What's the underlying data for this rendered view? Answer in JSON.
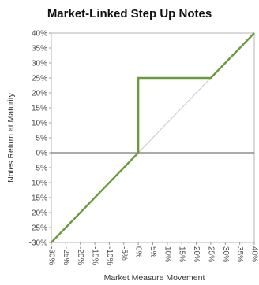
{
  "chart_data": {
    "type": "line",
    "title": "Market-Linked Step Up Notes",
    "xlabel": "Market Measure Movement",
    "ylabel": "Notes Return at Maturity",
    "xlim": [
      -30,
      40
    ],
    "ylim": [
      -30,
      40
    ],
    "x_ticks": [
      "-30%",
      "-25%",
      "-20%",
      "-15%",
      "-10%",
      "-5%",
      "0%",
      "5%",
      "10%",
      "15%",
      "20%",
      "25%",
      "30%",
      "35%",
      "40%"
    ],
    "y_ticks": [
      "40%",
      "35%",
      "30%",
      "25%",
      "20%",
      "15%",
      "10%",
      "5%",
      "0%",
      "-5%",
      "-10%",
      "-15%",
      "-20%",
      "-25%",
      "-30%"
    ],
    "grid": false,
    "series": [
      {
        "x": [
          -30,
          0,
          0,
          25,
          40
        ],
        "y": [
          -30,
          0,
          25,
          25,
          40
        ],
        "color": "#6a9a3a"
      },
      {
        "x": [
          0,
          40
        ],
        "y": [
          0,
          40
        ],
        "color": "#c8c8c8"
      }
    ]
  }
}
